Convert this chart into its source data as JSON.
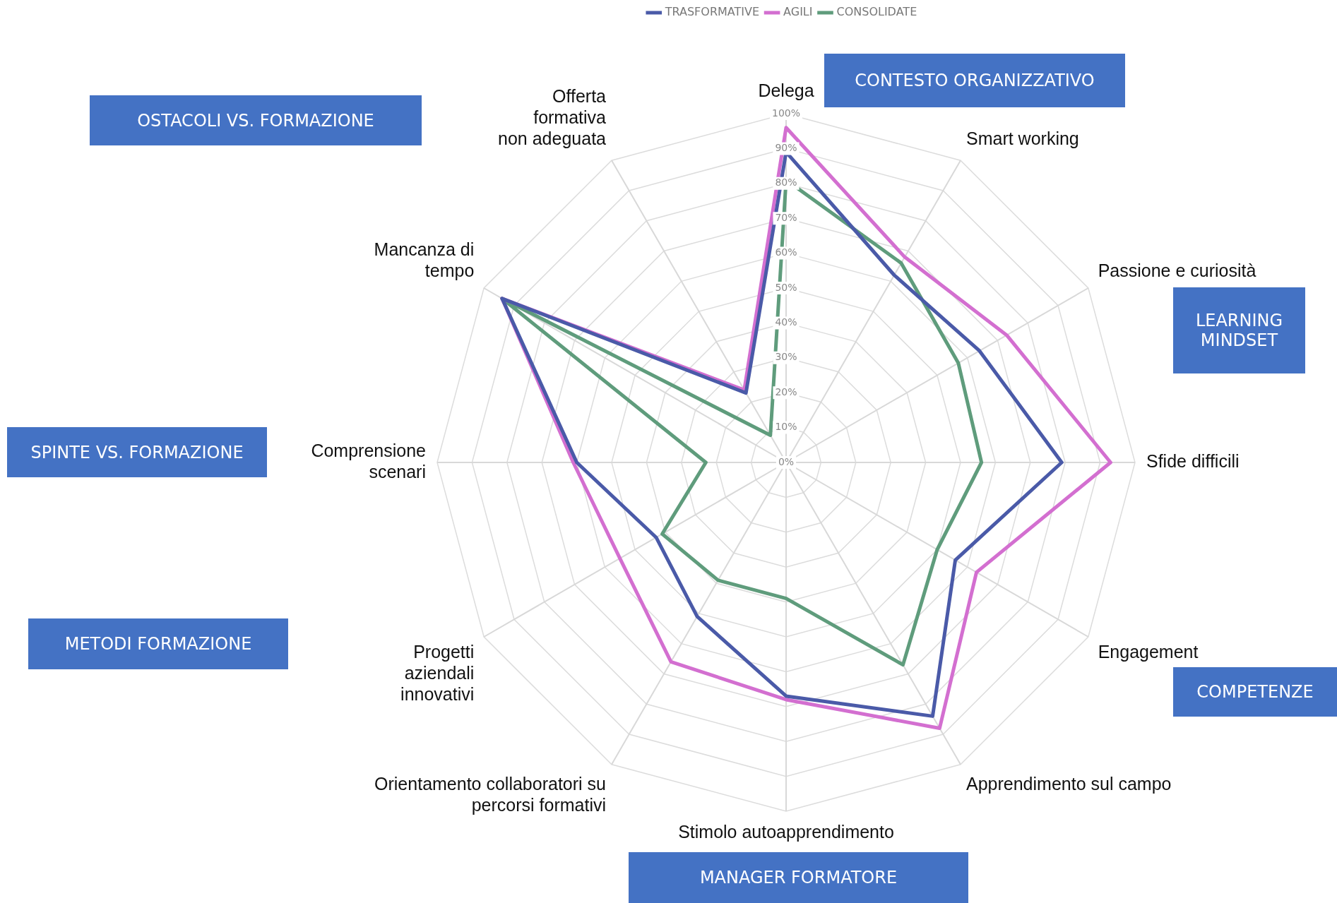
{
  "chart_data": {
    "type": "radar",
    "categories": [
      "Delega",
      "Smart working",
      "Passione e curiosità",
      "Sfide difficili",
      "Engagement",
      "Apprendimento sul campo",
      "Stimolo autoapprendimento",
      "Orientamento collaboratori su percorsi formativi",
      "Progetti aziendali innovativi",
      "Comprensione scenari",
      "Mancanza di tempo",
      "Offerta formativa non adeguata"
    ],
    "series": [
      {
        "name": "TRASFORMATIVE",
        "color": "#4a5aa8",
        "values": [
          89,
          62,
          64,
          79,
          56,
          84,
          67,
          51,
          43,
          60,
          94,
          23
        ]
      },
      {
        "name": "AGILI",
        "color": "#d36fd0",
        "values": [
          96,
          68,
          73,
          93,
          63,
          88,
          68,
          66,
          55,
          61,
          94,
          24
        ]
      },
      {
        "name": "CONSOLIDATE",
        "color": "#5f9c7c",
        "values": [
          81,
          66,
          57,
          56,
          50,
          67,
          39,
          39,
          41,
          23,
          94,
          9
        ]
      }
    ],
    "ylim": [
      0,
      100
    ],
    "yticks": [
      {
        "value": 0,
        "label": "0%"
      },
      {
        "value": 10,
        "label": "10%"
      },
      {
        "value": 20,
        "label": "20%"
      },
      {
        "value": 30,
        "label": "30%"
      },
      {
        "value": 40,
        "label": "40%"
      },
      {
        "value": 50,
        "label": "50%"
      },
      {
        "value": 60,
        "label": "60%"
      },
      {
        "value": 70,
        "label": "70%"
      },
      {
        "value": 80,
        "label": "80%"
      },
      {
        "value": 90,
        "label": "90%"
      },
      {
        "value": 100,
        "label": "100%"
      }
    ],
    "annotations": [
      "CONTESTO ORGANIZZATIVO",
      "LEARNING MINDSET",
      "COMPETENZE",
      "MANAGER FORMATORE",
      "METODI FORMAZIONE",
      "SPINTE VS. FORMAZIONE",
      "OSTACOLI VS. FORMAZIONE"
    ],
    "grid": true,
    "legend": "top",
    "marker": "none",
    "line_style": "solid"
  }
}
